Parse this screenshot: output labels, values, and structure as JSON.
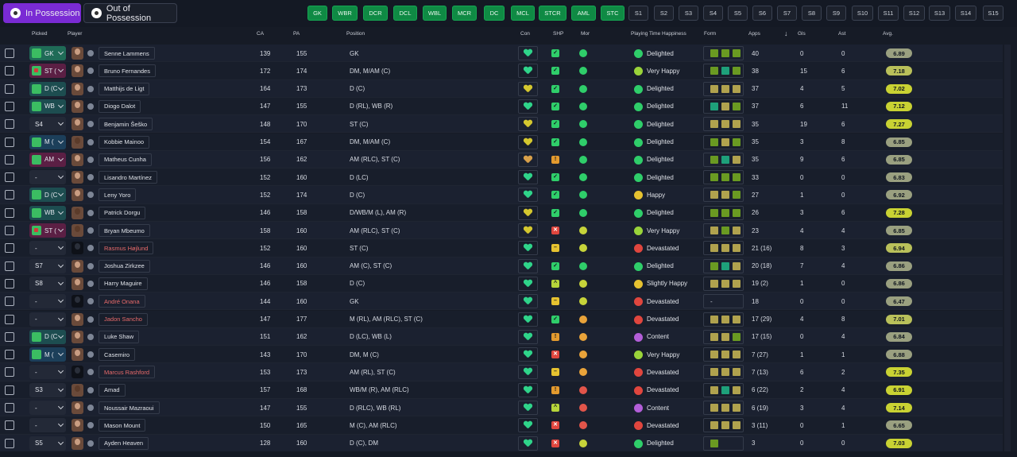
{
  "tabs": [
    {
      "label": "In Possession",
      "active": true
    },
    {
      "label": "Out of Possession",
      "active": false
    }
  ],
  "position_buttons": [
    "GK",
    "WBR",
    "DCR",
    "DCL",
    "WBL",
    "MCR",
    "DC",
    "MCL",
    "STCR",
    "AML",
    "STC",
    "S1",
    "S2",
    "S3",
    "S4",
    "S5",
    "S6",
    "S7",
    "S8",
    "S9",
    "S10",
    "S11",
    "S12",
    "S13",
    "S14",
    "S15"
  ],
  "header": {
    "picked": "Picked",
    "player": "Player",
    "ca": "CA",
    "pa": "PA",
    "position": "Position",
    "con": "Con",
    "shp": "SHP",
    "mor": "Mor",
    "happiness": "Playing Time Happiness",
    "form": "Form",
    "apps": "Apps",
    "gls": "Gls",
    "ast": "Ast",
    "avg": "Avg."
  },
  "players": [
    {
      "picked": "GK",
      "name": "Senne Lammens",
      "ca": "139",
      "pa": "155",
      "pos": "GK",
      "happy": "Delighted",
      "apps": "40",
      "gls": "0",
      "ast": "0",
      "avg": "6.89"
    },
    {
      "picked": "ST (",
      "name": "Bruno Fernandes",
      "ca": "172",
      "pa": "174",
      "pos": "DM, M/AM (C)",
      "happy": "Very Happy",
      "apps": "38",
      "gls": "15",
      "ast": "6",
      "avg": "7.18"
    },
    {
      "picked": "D (C",
      "name": "Matthijs de Ligt",
      "ca": "164",
      "pa": "173",
      "pos": "D (C)",
      "happy": "Delighted",
      "apps": "37",
      "gls": "4",
      "ast": "5",
      "avg": "7.02"
    },
    {
      "picked": "WB",
      "name": "Diogo Dalot",
      "ca": "147",
      "pa": "155",
      "pos": "D (RL), WB (R)",
      "happy": "Delighted",
      "apps": "37",
      "gls": "6",
      "ast": "11",
      "avg": "7.12"
    },
    {
      "picked": "S4",
      "name": "Benjamin Šeško",
      "ca": "148",
      "pa": "170",
      "pos": "ST (C)",
      "happy": "Delighted",
      "apps": "35",
      "gls": "19",
      "ast": "6",
      "avg": "7.27"
    },
    {
      "picked": "M (",
      "name": "Kobbie Mainoo",
      "ca": "154",
      "pa": "167",
      "pos": "DM, M/AM (C)",
      "happy": "Delighted",
      "apps": "35",
      "gls": "3",
      "ast": "8",
      "avg": "6.85"
    },
    {
      "picked": "AM",
      "name": "Matheus Cunha",
      "ca": "156",
      "pa": "162",
      "pos": "AM (RLC), ST (C)",
      "happy": "Delighted",
      "apps": "35",
      "gls": "9",
      "ast": "6",
      "avg": "6.85"
    },
    {
      "picked": "-",
      "name": "Lisandro Martínez",
      "ca": "152",
      "pa": "160",
      "pos": "D (LC)",
      "happy": "Delighted",
      "apps": "33",
      "gls": "0",
      "ast": "0",
      "avg": "6.83"
    },
    {
      "picked": "D (C",
      "name": "Leny Yoro",
      "ca": "152",
      "pa": "174",
      "pos": "D (C)",
      "happy": "Happy",
      "apps": "27",
      "gls": "1",
      "ast": "0",
      "avg": "6.92"
    },
    {
      "picked": "WB",
      "name": "Patrick Dorgu",
      "ca": "146",
      "pa": "158",
      "pos": "D/WB/M (L), AM (R)",
      "happy": "Delighted",
      "apps": "26",
      "gls": "3",
      "ast": "6",
      "avg": "7.28"
    },
    {
      "picked": "ST (",
      "name": "Bryan Mbeumo",
      "ca": "158",
      "pa": "160",
      "pos": "AM (RLC), ST (C)",
      "happy": "Very Happy",
      "apps": "23",
      "gls": "4",
      "ast": "4",
      "avg": "6.85"
    },
    {
      "picked": "-",
      "name": "Rasmus Højlund",
      "ca": "152",
      "pa": "160",
      "pos": "ST (C)",
      "happy": "Devastated",
      "apps": "21 (16)",
      "gls": "8",
      "ast": "3",
      "avg": "6.94"
    },
    {
      "picked": "S7",
      "name": "Joshua Zirkzee",
      "ca": "146",
      "pa": "160",
      "pos": "AM (C), ST (C)",
      "happy": "Delighted",
      "apps": "20 (18)",
      "gls": "7",
      "ast": "4",
      "avg": "6.86"
    },
    {
      "picked": "S8",
      "name": "Harry Maguire",
      "ca": "146",
      "pa": "158",
      "pos": "D (C)",
      "happy": "Slightly Happy",
      "apps": "19 (2)",
      "gls": "1",
      "ast": "0",
      "avg": "6.86"
    },
    {
      "picked": "-",
      "name": "André Onana",
      "ca": "144",
      "pa": "160",
      "pos": "GK",
      "happy": "Devastated",
      "apps": "18",
      "gls": "0",
      "ast": "0",
      "avg": "6.47"
    },
    {
      "picked": "-",
      "name": "Jadon Sancho",
      "ca": "147",
      "pa": "177",
      "pos": "M (RL), AM (RLC), ST (C)",
      "happy": "Devastated",
      "apps": "17 (29)",
      "gls": "4",
      "ast": "8",
      "avg": "7.01"
    },
    {
      "picked": "D (C",
      "name": "Luke Shaw",
      "ca": "151",
      "pa": "162",
      "pos": "D (LC), WB (L)",
      "happy": "Content",
      "apps": "17 (15)",
      "gls": "0",
      "ast": "4",
      "avg": "6.84"
    },
    {
      "picked": "M (",
      "name": "Casemiro",
      "ca": "143",
      "pa": "170",
      "pos": "DM, M (C)",
      "happy": "Very Happy",
      "apps": "7 (27)",
      "gls": "1",
      "ast": "1",
      "avg": "6.88"
    },
    {
      "picked": "-",
      "name": "Marcus Rashford",
      "ca": "153",
      "pa": "173",
      "pos": "AM (RL), ST (C)",
      "happy": "Devastated",
      "apps": "7 (13)",
      "gls": "6",
      "ast": "2",
      "avg": "7.35"
    },
    {
      "picked": "S3",
      "name": "Amad",
      "ca": "157",
      "pa": "168",
      "pos": "WB/M (R), AM (RLC)",
      "happy": "Devastated",
      "apps": "6 (22)",
      "gls": "2",
      "ast": "4",
      "avg": "6.91"
    },
    {
      "picked": "-",
      "name": "Noussair Mazraoui",
      "ca": "147",
      "pa": "155",
      "pos": "D (RLC), WB (RL)",
      "happy": "Content",
      "apps": "6 (19)",
      "gls": "3",
      "ast": "4",
      "avg": "7.14"
    },
    {
      "picked": "-",
      "name": "Mason Mount",
      "ca": "150",
      "pa": "165",
      "pos": "M (C), AM (RLC)",
      "happy": "Devastated",
      "apps": "3 (11)",
      "gls": "0",
      "ast": "1",
      "avg": "6.65"
    },
    {
      "picked": "S5",
      "name": "Ayden Heaven",
      "ca": "128",
      "pa": "160",
      "pos": "D (C), DM",
      "happy": "Delighted",
      "apps": "3",
      "gls": "0",
      "ast": "0",
      "avg": "7.03"
    }
  ]
}
